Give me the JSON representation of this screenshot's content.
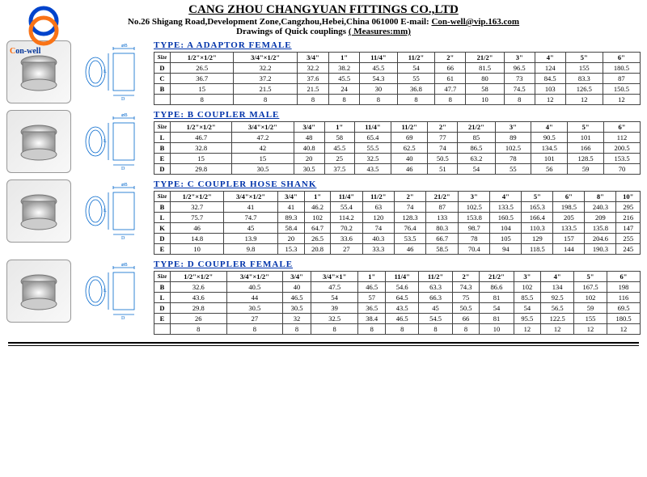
{
  "header": {
    "company": "CANG ZHOU CHANGYUAN FITTINGS CO.,LTD",
    "addr": "No.26 Shigang Road,Development Zone,Cangzhou,Hebei,China  061000  E-mail: ",
    "email": "Con-well@vip.163.com",
    "line2": "Drawings of Quick couplings    ",
    "measures": "( Measures:mm)"
  },
  "brand1": "C",
  "brand2": "on-well",
  "sizeLabel": "Size",
  "tA": {
    "title": "TYPE:  A  ADAPTOR   FEMALE",
    "cols": [
      "1/2\"×1/2\"",
      "3/4\"×1/2\"",
      "3/4\"",
      "1\"",
      "11/4\"",
      "11/2\"",
      "2\"",
      "21/2\"",
      "3\"",
      "4\"",
      "5\"",
      "6\""
    ],
    "rows": [
      {
        "h": "D",
        "v": [
          "26.5",
          "32.2",
          "32.2",
          "38.2",
          "45.5",
          "54",
          "66",
          "81.5",
          "96.5",
          "124",
          "155",
          "180.5"
        ]
      },
      {
        "h": "C",
        "v": [
          "36.7",
          "37.2",
          "37.6",
          "45.5",
          "54.3",
          "55",
          "61",
          "80",
          "73",
          "84.5",
          "83.3",
          "87"
        ]
      },
      {
        "h": "B",
        "v": [
          "15",
          "21.5",
          "21.5",
          "24",
          "30",
          "36.8",
          "47.7",
          "58",
          "74.5",
          "103",
          "126.5",
          "150.5"
        ]
      },
      {
        "h": "",
        "v": [
          "8",
          "8",
          "8",
          "8",
          "8",
          "8",
          "8",
          "10",
          "8",
          "12",
          "12",
          "12"
        ]
      }
    ]
  },
  "tB": {
    "title": "TYPE:  B   COUPLER   MALE",
    "cols": [
      "1/2\"×1/2\"",
      "3/4\"×1/2\"",
      "3/4\"",
      "1\"",
      "11/4\"",
      "11/2\"",
      "2\"",
      "21/2\"",
      "3\"",
      "4\"",
      "5\"",
      "6\""
    ],
    "rows": [
      {
        "h": "L",
        "v": [
          "46.7",
          "47.2",
          "48",
          "58",
          "65.4",
          "69",
          "77",
          "85",
          "89",
          "90.5",
          "101",
          "112"
        ]
      },
      {
        "h": "B",
        "v": [
          "32.8",
          "42",
          "40.8",
          "45.5",
          "55.5",
          "62.5",
          "74",
          "86.5",
          "102.5",
          "134.5",
          "166",
          "200.5"
        ]
      },
      {
        "h": "E",
        "v": [
          "15",
          "15",
          "20",
          "25",
          "32.5",
          "40",
          "50.5",
          "63.2",
          "78",
          "101",
          "128.5",
          "153.5"
        ]
      },
      {
        "h": "D",
        "v": [
          "29.8",
          "30.5",
          "30.5",
          "37.5",
          "43.5",
          "46",
          "51",
          "54",
          "55",
          "56",
          "59",
          "70"
        ]
      }
    ]
  },
  "tC": {
    "title": "TYPE:  C   COUPLER   HOSE   SHANK",
    "cols": [
      "1/2\"×1/2\"",
      "3/4\"×1/2\"",
      "3/4\"",
      "1\"",
      "11/4\"",
      "11/2\"",
      "2\"",
      "21/2\"",
      "3\"",
      "4\"",
      "5\"",
      "6\"",
      "8\"",
      "10\""
    ],
    "rows": [
      {
        "h": "B",
        "v": [
          "32.7",
          "41",
          "41",
          "46.2",
          "55.4",
          "63",
          "74",
          "87",
          "102.5",
          "133.5",
          "165.3",
          "198.5",
          "240.3",
          "295"
        ]
      },
      {
        "h": "L",
        "v": [
          "75.7",
          "74.7",
          "89.3",
          "102",
          "114.2",
          "120",
          "128.3",
          "133",
          "153.8",
          "160.5",
          "166.4",
          "205",
          "209",
          "216"
        ]
      },
      {
        "h": "K",
        "v": [
          "46",
          "45",
          "58.4",
          "64.7",
          "70.2",
          "74",
          "76.4",
          "80.3",
          "98.7",
          "104",
          "110.3",
          "133.5",
          "135.8",
          "147"
        ]
      },
      {
        "h": "D",
        "v": [
          "14.8",
          "13.9",
          "20",
          "26.5",
          "33.6",
          "40.3",
          "53.5",
          "66.7",
          "78",
          "105",
          "129",
          "157",
          "204.6",
          "255"
        ]
      },
      {
        "h": "E",
        "v": [
          "10",
          "9.8",
          "15.3",
          "20.8",
          "27",
          "33.3",
          "46",
          "58.5",
          "70.4",
          "94",
          "118.5",
          "144",
          "190.3",
          "245"
        ]
      }
    ]
  },
  "tD": {
    "title": "TYPE:  D   COUPLER   FEMALE",
    "cols": [
      "1/2\"×1/2\"",
      "3/4\"×1/2\"",
      "3/4\"",
      "3/4\"×1\"",
      "1\"",
      "11/4\"",
      "11/2\"",
      "2\"",
      "21/2\"",
      "3\"",
      "4\"",
      "5\"",
      "6\""
    ],
    "rows": [
      {
        "h": "B",
        "v": [
          "32.6",
          "40.5",
          "40",
          "47.5",
          "46.5",
          "54.6",
          "63.3",
          "74.3",
          "86.6",
          "102",
          "134",
          "167.5",
          "198"
        ]
      },
      {
        "h": "L",
        "v": [
          "43.6",
          "44",
          "46.5",
          "54",
          "57",
          "64.5",
          "66.3",
          "75",
          "81",
          "85.5",
          "92.5",
          "102",
          "116"
        ]
      },
      {
        "h": "D",
        "v": [
          "29.8",
          "30.5",
          "30.5",
          "39",
          "36.5",
          "43.5",
          "45",
          "50.5",
          "54",
          "54",
          "56.5",
          "59",
          "69.5"
        ]
      },
      {
        "h": "E",
        "v": [
          "26",
          "27",
          "32",
          "32.5",
          "38.4",
          "46.5",
          "54.5",
          "66",
          "81",
          "95.5",
          "122.5",
          "155",
          "180.5"
        ]
      },
      {
        "h": "",
        "v": [
          "8",
          "8",
          "8",
          "8",
          "8",
          "8",
          "8",
          "8",
          "10",
          "12",
          "12",
          "12",
          "12"
        ]
      }
    ]
  }
}
